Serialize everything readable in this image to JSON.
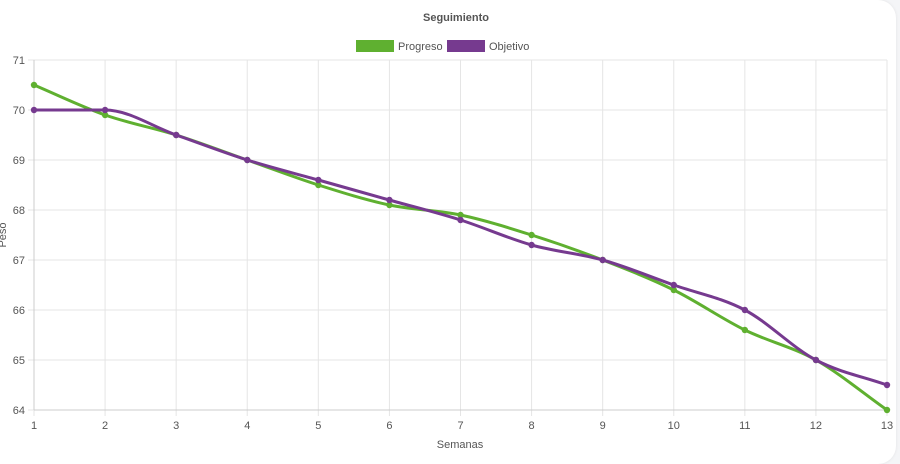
{
  "chart_data": {
    "type": "line",
    "title": "Seguimiento",
    "xlabel": "Semanas",
    "ylabel": "Peso",
    "x": [
      1,
      2,
      3,
      4,
      5,
      6,
      7,
      8,
      9,
      10,
      11,
      12,
      13
    ],
    "ylim": [
      64,
      71
    ],
    "yticks": [
      64,
      65,
      66,
      67,
      68,
      69,
      70,
      71
    ],
    "grid": true,
    "legend_position": "top",
    "series": [
      {
        "name": "Progreso",
        "color": "#5fb030",
        "values": [
          70.5,
          69.9,
          69.5,
          69.0,
          68.5,
          68.1,
          67.9,
          67.5,
          67.0,
          66.4,
          65.6,
          65.0,
          64.0
        ]
      },
      {
        "name": "Objetivo",
        "color": "#763a8f",
        "values": [
          70.0,
          70.0,
          69.5,
          69.0,
          68.6,
          68.2,
          67.8,
          67.3,
          67.0,
          66.5,
          66.0,
          65.0,
          64.5
        ]
      }
    ]
  }
}
